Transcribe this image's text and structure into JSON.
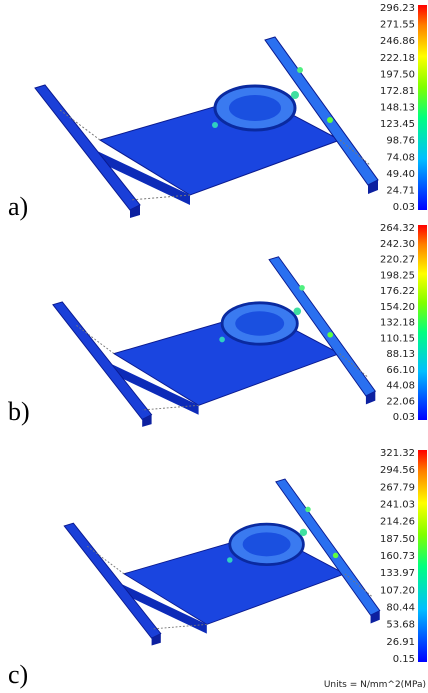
{
  "panels": [
    {
      "label": "a)",
      "scale": [
        "296.23",
        "271.55",
        "246.86",
        "222.18",
        "197.50",
        "172.81",
        "148.13",
        "123.45",
        "98.76",
        "74.08",
        "49.40",
        "24.71",
        "0.03"
      ]
    },
    {
      "label": "b)",
      "scale": [
        "264.32",
        "242.30",
        "220.27",
        "198.25",
        "176.22",
        "154.20",
        "132.18",
        "110.15",
        "88.13",
        "66.10",
        "44.08",
        "22.06",
        "0.03"
      ]
    },
    {
      "label": "c)",
      "scale": [
        "321.32",
        "294.56",
        "267.79",
        "241.03",
        "214.26",
        "187.50",
        "160.73",
        "133.97",
        "107.20",
        "80.44",
        "53.68",
        "26.91",
        "0.15"
      ]
    }
  ],
  "units": "Units = N/mm^2(MPa)"
}
